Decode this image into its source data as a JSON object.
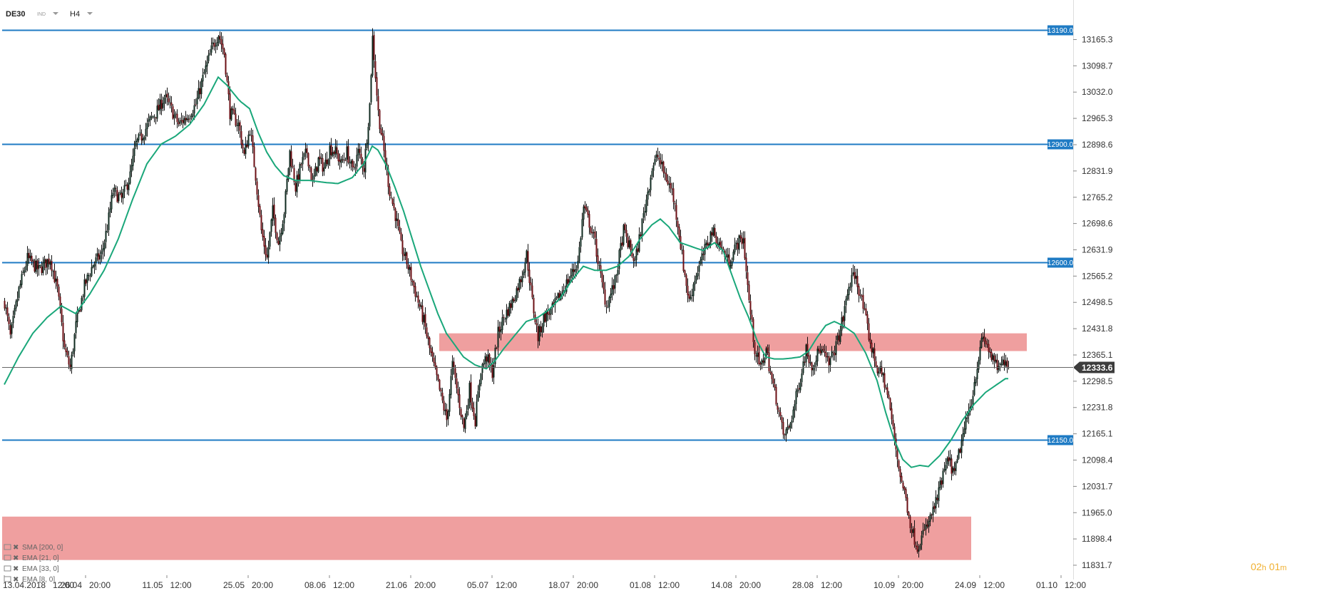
{
  "header": {
    "symbol": "DE30",
    "symbol_tag": "IND",
    "timeframe": "H4"
  },
  "timer": {
    "hours": "02",
    "h_unit": "h",
    "minutes": "01",
    "m_unit": "m"
  },
  "indicators": [
    {
      "label": "SMA [200, 0]"
    },
    {
      "label": "EMA [21, 0]"
    },
    {
      "label": "EMA [33, 0]"
    },
    {
      "label": "EMA [8, 0]"
    }
  ],
  "colors": {
    "candle_up": "#0f2a1f",
    "candle_down": "#6b0f14",
    "level_line": "#1f7bc4",
    "zone": "#ec8a8a",
    "ema": "#1aa77a",
    "current_line": "#666666",
    "current_tag": "#3c3c3c",
    "timer_hours": "#f0b030",
    "timer_minutes": "#f0b030"
  },
  "chart_data": {
    "type": "candlestick",
    "ylim": [
      11810,
      13215
    ],
    "y_ticks": [
      "13165.3",
      "13098.7",
      "13032.0",
      "12965.3",
      "12898.6",
      "12831.9",
      "12765.2",
      "12698.6",
      "12631.9",
      "12565.2",
      "12498.5",
      "12431.8",
      "12365.1",
      "12298.5",
      "12231.8",
      "12165.1",
      "12098.4",
      "12031.7",
      "11965.0",
      "11898.4",
      "11831.7"
    ],
    "x_ticks": [
      {
        "date": "13.04.2018",
        "time": "12:00",
        "index": 0
      },
      {
        "date": "26.04",
        "time": "20:00",
        "index": 57
      },
      {
        "date": "11.05",
        "time": "12:00",
        "index": 114
      },
      {
        "date": "25.05",
        "time": "20:00",
        "index": 171
      },
      {
        "date": "08.06",
        "time": "12:00",
        "index": 228
      },
      {
        "date": "21.06",
        "time": "20:00",
        "index": 285
      },
      {
        "date": "05.07",
        "time": "12:00",
        "index": 342
      },
      {
        "date": "18.07",
        "time": "20:00",
        "index": 399
      },
      {
        "date": "01.08",
        "time": "12:00",
        "index": 456
      },
      {
        "date": "14.08",
        "time": "20:00",
        "index": 513
      },
      {
        "date": "28.08",
        "time": "12:00",
        "index": 570
      },
      {
        "date": "10.09",
        "time": "20:00",
        "index": 627
      },
      {
        "date": "24.09",
        "time": "12:00",
        "index": 684
      },
      {
        "date": "01.10",
        "time": "12:00",
        "index": 741
      }
    ],
    "levels": [
      {
        "label": "13190.0",
        "value": 13190.0
      },
      {
        "label": "12900.0",
        "value": 12900.0
      },
      {
        "label": "12600.0",
        "value": 12600.0
      },
      {
        "label": "12150.0",
        "value": 12150.0
      }
    ],
    "zones": [
      {
        "from_index": 305,
        "to_index": 717,
        "low": 12375,
        "high": 12420
      },
      {
        "from_index": 0,
        "to_index": 678,
        "low": 11845,
        "high": 11955
      }
    ],
    "current_price": {
      "label": "12333.6",
      "value": 12333.6
    },
    "anchors": [
      [
        0,
        12500
      ],
      [
        4,
        12410
      ],
      [
        10,
        12530
      ],
      [
        16,
        12610
      ],
      [
        24,
        12580
      ],
      [
        32,
        12610
      ],
      [
        37,
        12530
      ],
      [
        42,
        12380
      ],
      [
        46,
        12330
      ],
      [
        50,
        12440
      ],
      [
        56,
        12540
      ],
      [
        62,
        12595
      ],
      [
        68,
        12620
      ],
      [
        72,
        12690
      ],
      [
        76,
        12780
      ],
      [
        82,
        12760
      ],
      [
        88,
        12820
      ],
      [
        92,
        12900
      ],
      [
        96,
        12920
      ],
      [
        102,
        12960
      ],
      [
        108,
        12990
      ],
      [
        112,
        13020
      ],
      [
        118,
        12980
      ],
      [
        122,
        12950
      ],
      [
        128,
        12970
      ],
      [
        134,
        13000
      ],
      [
        140,
        13080
      ],
      [
        146,
        13150
      ],
      [
        150,
        13180
      ],
      [
        154,
        13130
      ],
      [
        158,
        12980
      ],
      [
        164,
        12950
      ],
      [
        168,
        12870
      ],
      [
        172,
        12940
      ],
      [
        176,
        12820
      ],
      [
        180,
        12680
      ],
      [
        184,
        12610
      ],
      [
        188,
        12730
      ],
      [
        192,
        12650
      ],
      [
        196,
        12730
      ],
      [
        200,
        12880
      ],
      [
        204,
        12790
      ],
      [
        208,
        12850
      ],
      [
        212,
        12880
      ],
      [
        216,
        12800
      ],
      [
        220,
        12860
      ],
      [
        224,
        12840
      ],
      [
        228,
        12890
      ],
      [
        232,
        12880
      ],
      [
        236,
        12850
      ],
      [
        240,
        12880
      ],
      [
        244,
        12830
      ],
      [
        248,
        12880
      ],
      [
        252,
        12840
      ],
      [
        256,
        13000
      ],
      [
        258,
        13170
      ],
      [
        262,
        12980
      ],
      [
        266,
        12880
      ],
      [
        270,
        12780
      ],
      [
        274,
        12720
      ],
      [
        278,
        12640
      ],
      [
        282,
        12600
      ],
      [
        286,
        12550
      ],
      [
        290,
        12500
      ],
      [
        294,
        12450
      ],
      [
        298,
        12380
      ],
      [
        302,
        12320
      ],
      [
        306,
        12260
      ],
      [
        310,
        12200
      ],
      [
        314,
        12340
      ],
      [
        318,
        12260
      ],
      [
        322,
        12180
      ],
      [
        326,
        12280
      ],
      [
        330,
        12200
      ],
      [
        334,
        12330
      ],
      [
        338,
        12360
      ],
      [
        342,
        12320
      ],
      [
        346,
        12420
      ],
      [
        350,
        12460
      ],
      [
        356,
        12500
      ],
      [
        362,
        12560
      ],
      [
        366,
        12620
      ],
      [
        370,
        12500
      ],
      [
        374,
        12410
      ],
      [
        378,
        12460
      ],
      [
        384,
        12480
      ],
      [
        390,
        12520
      ],
      [
        396,
        12560
      ],
      [
        402,
        12600
      ],
      [
        406,
        12740
      ],
      [
        410,
        12700
      ],
      [
        414,
        12650
      ],
      [
        418,
        12560
      ],
      [
        422,
        12490
      ],
      [
        428,
        12550
      ],
      [
        434,
        12680
      ],
      [
        438,
        12640
      ],
      [
        442,
        12600
      ],
      [
        446,
        12680
      ],
      [
        450,
        12760
      ],
      [
        454,
        12840
      ],
      [
        458,
        12870
      ],
      [
        462,
        12830
      ],
      [
        468,
        12780
      ],
      [
        472,
        12700
      ],
      [
        476,
        12590
      ],
      [
        480,
        12500
      ],
      [
        484,
        12560
      ],
      [
        490,
        12620
      ],
      [
        496,
        12680
      ],
      [
        502,
        12640
      ],
      [
        508,
        12600
      ],
      [
        514,
        12650
      ],
      [
        518,
        12660
      ],
      [
        522,
        12500
      ],
      [
        526,
        12380
      ],
      [
        530,
        12330
      ],
      [
        534,
        12380
      ],
      [
        538,
        12300
      ],
      [
        542,
        12240
      ],
      [
        546,
        12160
      ],
      [
        550,
        12180
      ],
      [
        554,
        12240
      ],
      [
        558,
        12310
      ],
      [
        562,
        12380
      ],
      [
        566,
        12340
      ],
      [
        572,
        12380
      ],
      [
        578,
        12340
      ],
      [
        584,
        12400
      ],
      [
        588,
        12460
      ],
      [
        592,
        12540
      ],
      [
        596,
        12570
      ],
      [
        600,
        12520
      ],
      [
        604,
        12450
      ],
      [
        608,
        12380
      ],
      [
        612,
        12330
      ],
      [
        616,
        12310
      ],
      [
        620,
        12250
      ],
      [
        624,
        12150
      ],
      [
        628,
        12060
      ],
      [
        632,
        12000
      ],
      [
        636,
        11920
      ],
      [
        640,
        11880
      ],
      [
        644,
        11910
      ],
      [
        648,
        11940
      ],
      [
        654,
        12000
      ],
      [
        658,
        12060
      ],
      [
        662,
        12100
      ],
      [
        666,
        12060
      ],
      [
        670,
        12130
      ],
      [
        674,
        12190
      ],
      [
        678,
        12250
      ],
      [
        682,
        12340
      ],
      [
        686,
        12410
      ],
      [
        690,
        12380
      ],
      [
        694,
        12340
      ],
      [
        698,
        12330
      ],
      [
        702,
        12360
      ],
      [
        704,
        12333.6
      ]
    ],
    "ema_anchors": [
      [
        0,
        12290
      ],
      [
        10,
        12360
      ],
      [
        20,
        12420
      ],
      [
        30,
        12460
      ],
      [
        40,
        12490
      ],
      [
        50,
        12470
      ],
      [
        60,
        12520
      ],
      [
        70,
        12580
      ],
      [
        80,
        12660
      ],
      [
        90,
        12760
      ],
      [
        100,
        12850
      ],
      [
        110,
        12900
      ],
      [
        120,
        12920
      ],
      [
        130,
        12950
      ],
      [
        140,
        13000
      ],
      [
        150,
        13070
      ],
      [
        156,
        13050
      ],
      [
        165,
        13010
      ],
      [
        172,
        12990
      ],
      [
        178,
        12930
      ],
      [
        184,
        12880
      ],
      [
        190,
        12845
      ],
      [
        196,
        12820
      ],
      [
        204,
        12808
      ],
      [
        214,
        12808
      ],
      [
        224,
        12803
      ],
      [
        234,
        12800
      ],
      [
        244,
        12815
      ],
      [
        252,
        12850
      ],
      [
        258,
        12895
      ],
      [
        262,
        12885
      ],
      [
        268,
        12845
      ],
      [
        274,
        12790
      ],
      [
        280,
        12730
      ],
      [
        286,
        12660
      ],
      [
        292,
        12590
      ],
      [
        298,
        12530
      ],
      [
        304,
        12470
      ],
      [
        310,
        12420
      ],
      [
        316,
        12390
      ],
      [
        322,
        12360
      ],
      [
        330,
        12340
      ],
      [
        338,
        12330
      ],
      [
        344,
        12350
      ],
      [
        350,
        12380
      ],
      [
        358,
        12415
      ],
      [
        366,
        12450
      ],
      [
        374,
        12460
      ],
      [
        382,
        12480
      ],
      [
        390,
        12510
      ],
      [
        398,
        12555
      ],
      [
        406,
        12590
      ],
      [
        414,
        12580
      ],
      [
        422,
        12580
      ],
      [
        430,
        12590
      ],
      [
        438,
        12615
      ],
      [
        446,
        12660
      ],
      [
        454,
        12695
      ],
      [
        460,
        12710
      ],
      [
        466,
        12690
      ],
      [
        474,
        12650
      ],
      [
        482,
        12640
      ],
      [
        490,
        12630
      ],
      [
        498,
        12650
      ],
      [
        504,
        12630
      ],
      [
        510,
        12570
      ],
      [
        516,
        12510
      ],
      [
        522,
        12460
      ],
      [
        528,
        12400
      ],
      [
        534,
        12360
      ],
      [
        540,
        12355
      ],
      [
        546,
        12355
      ],
      [
        552,
        12357
      ],
      [
        558,
        12360
      ],
      [
        564,
        12375
      ],
      [
        570,
        12410
      ],
      [
        576,
        12440
      ],
      [
        582,
        12450
      ],
      [
        588,
        12440
      ],
      [
        596,
        12420
      ],
      [
        604,
        12370
      ],
      [
        612,
        12300
      ],
      [
        618,
        12220
      ],
      [
        624,
        12150
      ],
      [
        630,
        12100
      ],
      [
        636,
        12080
      ],
      [
        642,
        12085
      ],
      [
        648,
        12082
      ],
      [
        656,
        12110
      ],
      [
        664,
        12150
      ],
      [
        672,
        12200
      ],
      [
        680,
        12240
      ],
      [
        688,
        12270
      ],
      [
        696,
        12290
      ],
      [
        702,
        12305
      ]
    ]
  }
}
